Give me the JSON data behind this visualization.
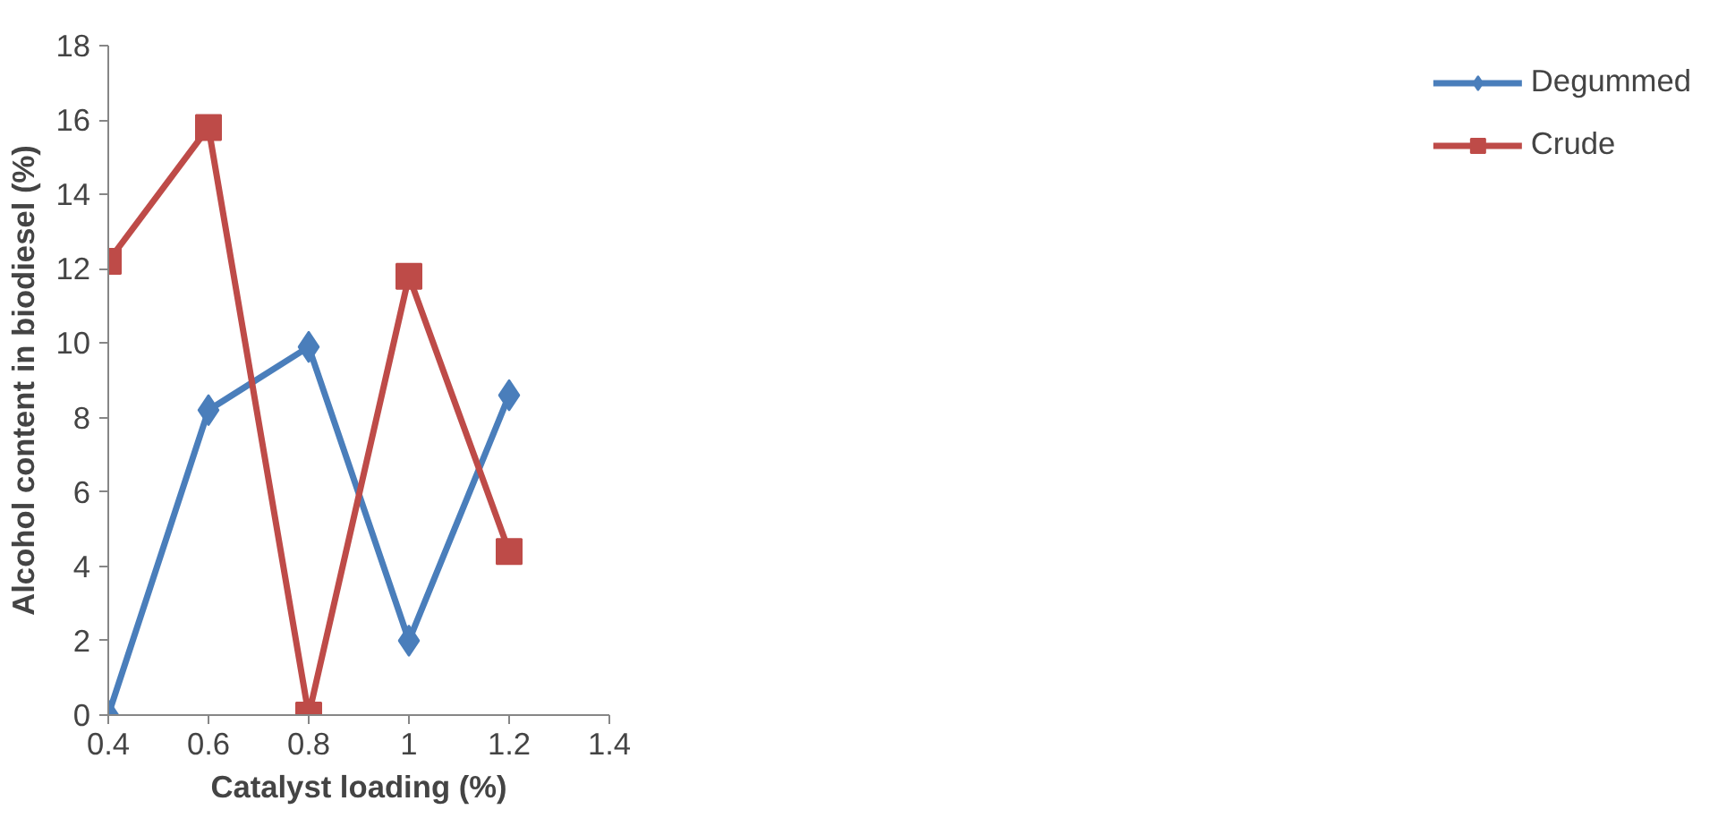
{
  "chart_data": {
    "type": "line",
    "xlabel": "Catalyst loading (%)",
    "ylabel": "Alcohol content in biodiesel (%)",
    "x": [
      0.4,
      0.6,
      0.8,
      1,
      1.2
    ],
    "series": [
      {
        "name": "Degummed",
        "color": "#4a7ebb",
        "marker": "diamond",
        "values": [
          0,
          8.2,
          9.9,
          2.0,
          8.6
        ]
      },
      {
        "name": "Crude",
        "color": "#be4b48",
        "marker": "square",
        "values": [
          12.2,
          15.8,
          0,
          11.8,
          4.4
        ]
      }
    ],
    "xlim": [
      0.4,
      1.4
    ],
    "xticks": [
      0.4,
      0.6,
      0.8,
      1,
      1.2,
      1.4
    ],
    "ylim": [
      0,
      18
    ],
    "yticks": [
      0,
      2,
      4,
      6,
      8,
      10,
      12,
      14,
      16,
      18
    ],
    "grid": false,
    "legend": "right",
    "line_style": "solid"
  }
}
